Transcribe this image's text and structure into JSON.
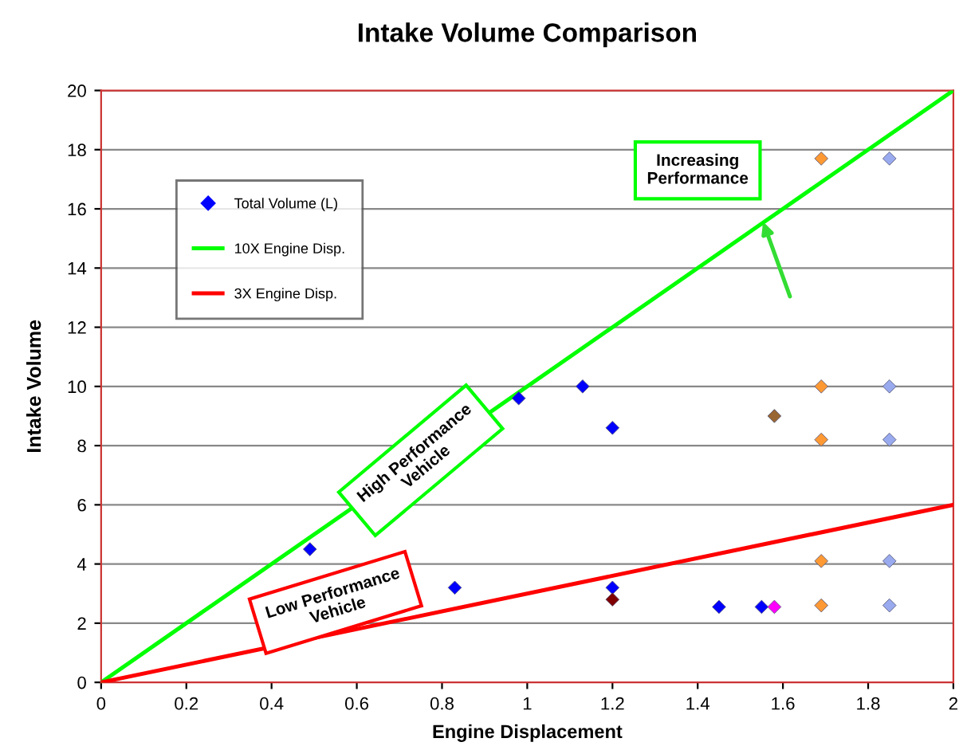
{
  "chart_data": {
    "type": "scatter",
    "title": "Intake Volume Comparison",
    "xlabel": "Engine Displacement",
    "ylabel": "Intake Volume",
    "xlim": [
      0,
      2
    ],
    "ylim": [
      0,
      20
    ],
    "xticks": [
      0,
      0.2,
      0.4,
      0.6,
      0.8,
      1,
      1.2,
      1.4,
      1.6,
      1.8,
      2
    ],
    "yticks": [
      0,
      2,
      4,
      6,
      8,
      10,
      12,
      14,
      16,
      18,
      20
    ],
    "grid": "y",
    "legend": "top left",
    "annotations": [
      "Increasing Performance",
      "High Performance Vehicle",
      "Low Performance Vehicle"
    ],
    "series": [
      {
        "name": "Total Volume (L)",
        "marker": "diamond",
        "color": "#0000ff",
        "x": [
          0.49,
          0.83,
          0.98,
          1.13,
          1.2,
          1.2,
          1.2,
          1.45,
          1.55,
          1.58,
          1.58,
          1.69,
          1.69,
          1.69,
          1.69,
          1.69,
          1.85,
          1.85,
          1.85,
          1.85,
          1.85
        ],
        "values": [
          4.5,
          3.2,
          9.6,
          10,
          8.6,
          3.2,
          2.8,
          2.55,
          2.55,
          2.55,
          9.0,
          17.7,
          10,
          8.2,
          4.1,
          2.6,
          17.7,
          10,
          8.2,
          4.1,
          2.6
        ],
        "colors": [
          "#0000ff",
          "#0000ff",
          "#0000ff",
          "#0000ff",
          "#0000ff",
          "#0000ff",
          "#800000",
          "#0000ff",
          "#0000ff",
          "#ff00ff",
          "#996633",
          "#ff9933",
          "#ff9933",
          "#ff9933",
          "#ff9933",
          "#ff9933",
          "#99aaee",
          "#99aaee",
          "#99aaee",
          "#99aaee",
          "#99aaee"
        ]
      },
      {
        "name": "10X Engine Disp.",
        "type": "line",
        "color": "#00ff00",
        "x": [
          0,
          2
        ],
        "values": [
          0,
          20
        ]
      },
      {
        "name": "3X Engine Disp.",
        "type": "line",
        "color": "#ff0000",
        "x": [
          0,
          2
        ],
        "values": [
          0,
          6
        ]
      }
    ]
  }
}
